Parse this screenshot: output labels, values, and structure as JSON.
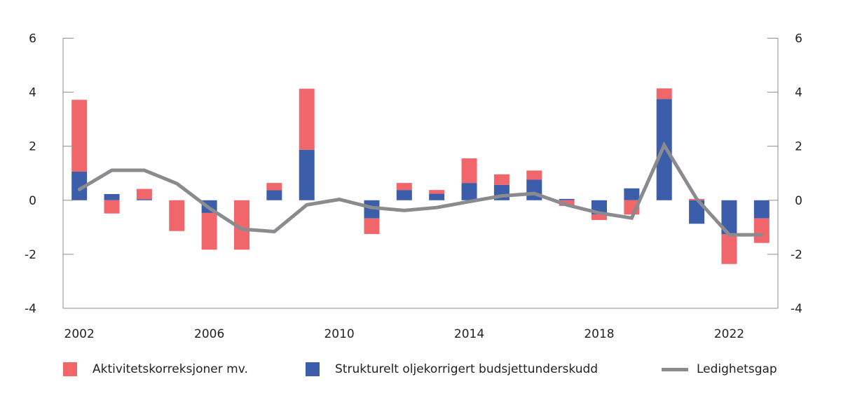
{
  "chart_data": {
    "type": "bar",
    "subtype": "stacked-bar-with-line",
    "title": "",
    "xlabel": "",
    "ylabel": "",
    "ylim": [
      -4,
      6
    ],
    "yticks": [
      6,
      4,
      2,
      0,
      -2,
      -4
    ],
    "ytick_labels": [
      "6",
      "4",
      "2",
      "0",
      "-2",
      "-4"
    ],
    "secondary_ylim": [
      -4,
      6
    ],
    "secondary_ytick_labels": [
      "6",
      "4",
      "2",
      "0",
      "-2",
      "-4"
    ],
    "grid": false,
    "categories": [
      "2002",
      "2003",
      "2004",
      "2005",
      "2006",
      "2007",
      "2008",
      "2009",
      "2010",
      "2011",
      "2012",
      "2013",
      "2014",
      "2015",
      "2016",
      "2017",
      "2018",
      "2019",
      "2020",
      "2021",
      "2022",
      "2023"
    ],
    "xtick_labels": [
      "2002",
      "2006",
      "2010",
      "2014",
      "2018",
      "2022"
    ],
    "series": [
      {
        "name": "Strukturelt oljekorrigert budsjettunderskudd",
        "type": "bar",
        "color": "#3b5daa",
        "values": [
          1.06,
          0.23,
          0.04,
          0.0,
          -0.47,
          0.0,
          0.37,
          1.87,
          0.03,
          -0.67,
          0.38,
          0.24,
          0.64,
          0.57,
          0.76,
          0.05,
          -0.53,
          0.44,
          3.75,
          -0.87,
          -1.26,
          -0.67
        ]
      },
      {
        "name": "Aktivitetskorreksjoner mv.",
        "type": "bar",
        "color": "#f0666a",
        "values": [
          2.66,
          -0.49,
          0.38,
          -1.14,
          -1.36,
          -1.83,
          0.27,
          2.26,
          0.0,
          -0.58,
          0.26,
          0.14,
          0.91,
          0.39,
          0.34,
          -0.21,
          -0.2,
          -0.53,
          0.39,
          0.05,
          -1.1,
          -0.91
        ]
      },
      {
        "name": "Ledighetsgap",
        "type": "line",
        "color": "#8a8b8e",
        "values": [
          0.4,
          1.11,
          1.11,
          0.62,
          -0.29,
          -1.07,
          -1.16,
          -0.17,
          0.03,
          -0.27,
          -0.38,
          -0.27,
          -0.05,
          0.16,
          0.25,
          -0.17,
          -0.47,
          -0.66,
          2.04,
          0.05,
          -1.28,
          -1.28
        ]
      }
    ],
    "legend": {
      "placement": "bottom",
      "entries": [
        {
          "label": "Aktivitetskorreksjoner mv.",
          "kind": "swatch",
          "color": "#f0666a"
        },
        {
          "label": "Strukturelt oljekorrigert budsjettunderskudd",
          "kind": "swatch",
          "color": "#3b5daa"
        },
        {
          "label": "Ledighetsgap",
          "kind": "line",
          "color": "#8a8b8e"
        }
      ]
    }
  }
}
